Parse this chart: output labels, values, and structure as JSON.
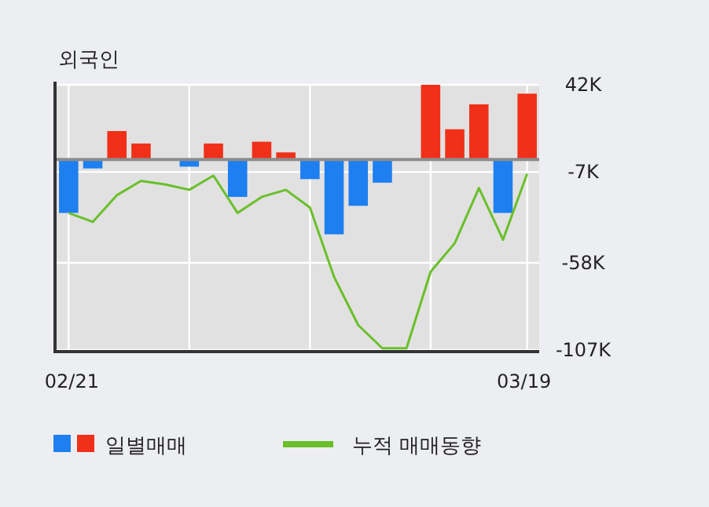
{
  "chart_data": {
    "type": "bar",
    "title": "외국인",
    "categories": [
      "02/21",
      null,
      null,
      null,
      null,
      null,
      null,
      null,
      null,
      null,
      null,
      null,
      null,
      null,
      null,
      null,
      null,
      null,
      null,
      "03/19"
    ],
    "series": [
      {
        "name": "일별매매",
        "colors": [
          "#1e7ff0",
          "#1e7ff0",
          "#f03018",
          "#f03018",
          "#f03018",
          "#1e7ff0",
          "#f03018",
          "#1e7ff0",
          "#f03018",
          "#f03018",
          "#1e7ff0",
          "#1e7ff0",
          "#1e7ff0",
          "#1e7ff0",
          "#f03018",
          "#f03018",
          "#f03018",
          "#f03018",
          "#1e7ff0",
          "#f03018"
        ],
        "values": [
          -30,
          -5,
          16,
          9,
          0,
          -4,
          9,
          -21,
          10,
          4,
          -11,
          -42,
          -26,
          -13,
          0,
          42,
          17,
          31,
          -30,
          37
        ]
      },
      {
        "name": "누적 매매동향",
        "type": "line",
        "color": "#6abf2a",
        "values": [
          -30,
          -35,
          -20,
          -12,
          -14,
          -17,
          -9,
          -30,
          -21,
          -17,
          -27,
          -66,
          -93,
          -106,
          -106,
          -63,
          -47,
          -16,
          -45,
          -8
        ]
      }
    ],
    "ylim": [
      -107,
      42
    ],
    "yticks": [
      {
        "value": 42,
        "label": "42K"
      },
      {
        "value": -7,
        "label": "-7K"
      },
      {
        "value": -58,
        "label": "-58K"
      },
      {
        "value": -107,
        "label": "-107K"
      }
    ],
    "grid": true,
    "legend": "bottom"
  }
}
